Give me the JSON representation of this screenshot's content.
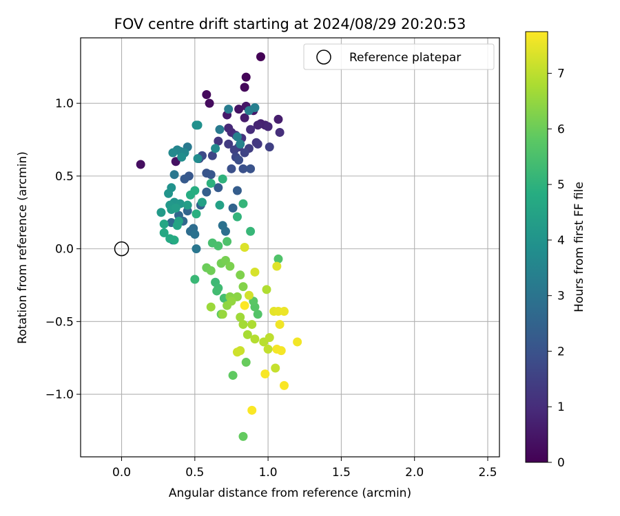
{
  "colors": {
    "grid": "#b0b0b0",
    "reference_marker": "#000000",
    "colormap": "viridis"
  },
  "chart_data": {
    "type": "scatter",
    "title": "FOV centre drift starting at 2024/08/29 20:20:53",
    "xlabel": "Angular distance from reference (arcmin)",
    "ylabel": "Rotation from reference (arcmin)",
    "xlim": [
      -0.28,
      2.58
    ],
    "ylim": [
      -1.43,
      1.45
    ],
    "x_ticks": [
      0.0,
      0.5,
      1.0,
      1.5,
      2.0,
      2.5
    ],
    "x_tick_labels": [
      "0.0",
      "0.5",
      "1.0",
      "1.5",
      "2.0",
      "2.5"
    ],
    "y_ticks": [
      1.0,
      0.5,
      0.0,
      -0.5,
      -1.0
    ],
    "y_tick_labels": [
      "1.0",
      "0.5",
      "0.0",
      "−0.5",
      "−1.0"
    ],
    "grid": true,
    "legend": {
      "position": "top-right",
      "entries": [
        "Reference platepar"
      ]
    },
    "reference_point": {
      "x": 0.0,
      "y": 0.0
    },
    "colorbar": {
      "label": "Hours from first FF file",
      "min": 0,
      "max": 7.75,
      "ticks": [
        0,
        1,
        2,
        3,
        4,
        5,
        6,
        7
      ],
      "tick_labels": [
        "0",
        "1",
        "2",
        "3",
        "4",
        "5",
        "6",
        "7"
      ]
    },
    "series": [
      {
        "values": [
          {
            "x": 0.95,
            "y": 1.32,
            "h": 0.05
          },
          {
            "x": 0.85,
            "y": 1.18,
            "h": 0.1
          },
          {
            "x": 0.84,
            "y": 1.11,
            "h": 0.15
          },
          {
            "x": 0.58,
            "y": 1.06,
            "h": 0.2
          },
          {
            "x": 0.6,
            "y": 1.0,
            "h": 0.25
          },
          {
            "x": 0.13,
            "y": 0.58,
            "h": 0.3
          },
          {
            "x": 0.37,
            "y": 0.6,
            "h": 0.35
          },
          {
            "x": 0.8,
            "y": 0.96,
            "h": 0.4
          },
          {
            "x": 0.85,
            "y": 0.98,
            "h": 0.45
          },
          {
            "x": 0.9,
            "y": 0.95,
            "h": 0.5
          },
          {
            "x": 0.72,
            "y": 0.92,
            "h": 0.55
          },
          {
            "x": 0.84,
            "y": 0.9,
            "h": 0.6
          },
          {
            "x": 1.07,
            "y": 0.89,
            "h": 0.65
          },
          {
            "x": 0.95,
            "y": 0.86,
            "h": 0.7
          },
          {
            "x": 0.98,
            "y": 0.85,
            "h": 0.75
          },
          {
            "x": 0.93,
            "y": 0.85,
            "h": 0.8
          },
          {
            "x": 1.0,
            "y": 0.84,
            "h": 0.85
          },
          {
            "x": 0.73,
            "y": 0.83,
            "h": 0.9
          },
          {
            "x": 0.75,
            "y": 0.8,
            "h": 0.95
          },
          {
            "x": 0.88,
            "y": 0.82,
            "h": 1.0
          },
          {
            "x": 1.08,
            "y": 0.8,
            "h": 1.05
          },
          {
            "x": 0.78,
            "y": 0.78,
            "h": 1.1
          },
          {
            "x": 0.82,
            "y": 0.76,
            "h": 1.15
          },
          {
            "x": 0.66,
            "y": 0.74,
            "h": 1.2
          },
          {
            "x": 0.92,
            "y": 0.73,
            "h": 1.25
          },
          {
            "x": 0.93,
            "y": 0.72,
            "h": 1.3
          },
          {
            "x": 0.73,
            "y": 0.72,
            "h": 1.35
          },
          {
            "x": 0.8,
            "y": 0.7,
            "h": 1.4
          },
          {
            "x": 0.87,
            "y": 0.69,
            "h": 1.45
          },
          {
            "x": 1.01,
            "y": 0.7,
            "h": 1.5
          },
          {
            "x": 0.77,
            "y": 0.68,
            "h": 1.55
          },
          {
            "x": 0.84,
            "y": 0.66,
            "h": 1.6
          },
          {
            "x": 0.62,
            "y": 0.64,
            "h": 1.65
          },
          {
            "x": 0.78,
            "y": 0.63,
            "h": 1.7
          },
          {
            "x": 0.55,
            "y": 0.64,
            "h": 1.75
          },
          {
            "x": 0.53,
            "y": 0.62,
            "h": 1.8
          },
          {
            "x": 0.8,
            "y": 0.61,
            "h": 1.85
          },
          {
            "x": 0.75,
            "y": 0.55,
            "h": 1.9
          },
          {
            "x": 0.83,
            "y": 0.55,
            "h": 1.95
          },
          {
            "x": 0.88,
            "y": 0.55,
            "h": 2.0
          },
          {
            "x": 0.58,
            "y": 0.52,
            "h": 2.05
          },
          {
            "x": 0.61,
            "y": 0.51,
            "h": 2.1
          },
          {
            "x": 0.46,
            "y": 0.5,
            "h": 2.15
          },
          {
            "x": 0.43,
            "y": 0.48,
            "h": 2.2
          },
          {
            "x": 0.66,
            "y": 0.42,
            "h": 2.25
          },
          {
            "x": 0.79,
            "y": 0.4,
            "h": 2.3
          },
          {
            "x": 0.58,
            "y": 0.39,
            "h": 2.35
          },
          {
            "x": 0.37,
            "y": 0.3,
            "h": 2.4
          },
          {
            "x": 0.54,
            "y": 0.3,
            "h": 2.45
          },
          {
            "x": 0.76,
            "y": 0.28,
            "h": 2.5
          },
          {
            "x": 0.45,
            "y": 0.26,
            "h": 2.55
          },
          {
            "x": 0.39,
            "y": 0.23,
            "h": 2.6
          },
          {
            "x": 0.42,
            "y": 0.19,
            "h": 2.65
          },
          {
            "x": 0.34,
            "y": 0.18,
            "h": 2.7
          },
          {
            "x": 0.49,
            "y": 0.14,
            "h": 2.75
          },
          {
            "x": 0.47,
            "y": 0.12,
            "h": 2.8
          },
          {
            "x": 0.71,
            "y": 0.12,
            "h": 2.85
          },
          {
            "x": 0.69,
            "y": 0.16,
            "h": 2.9
          },
          {
            "x": 0.5,
            "y": 0.1,
            "h": 2.95
          },
          {
            "x": 0.35,
            "y": 0.06,
            "h": 3.0
          },
          {
            "x": 0.51,
            "y": 0.0,
            "h": 3.05
          },
          {
            "x": 0.36,
            "y": 0.51,
            "h": 3.1
          },
          {
            "x": 0.45,
            "y": 0.7,
            "h": 3.15
          },
          {
            "x": 0.67,
            "y": 0.82,
            "h": 3.2
          },
          {
            "x": 0.73,
            "y": 0.96,
            "h": 3.25
          },
          {
            "x": 0.87,
            "y": 0.95,
            "h": 3.3
          },
          {
            "x": 0.91,
            "y": 0.97,
            "h": 3.35
          },
          {
            "x": 0.79,
            "y": 0.77,
            "h": 3.4
          },
          {
            "x": 0.81,
            "y": 0.72,
            "h": 3.45
          },
          {
            "x": 0.38,
            "y": 0.68,
            "h": 3.5
          },
          {
            "x": 0.4,
            "y": 0.67,
            "h": 3.55
          },
          {
            "x": 0.43,
            "y": 0.66,
            "h": 3.6
          },
          {
            "x": 0.35,
            "y": 0.66,
            "h": 3.65
          },
          {
            "x": 0.64,
            "y": 0.69,
            "h": 3.7
          },
          {
            "x": 0.52,
            "y": 0.62,
            "h": 3.75
          },
          {
            "x": 0.41,
            "y": 0.63,
            "h": 3.8
          },
          {
            "x": 0.51,
            "y": 0.85,
            "h": 3.85
          },
          {
            "x": 0.52,
            "y": 0.85,
            "h": 3.9
          },
          {
            "x": 0.34,
            "y": 0.42,
            "h": 3.95
          },
          {
            "x": 0.32,
            "y": 0.38,
            "h": 4.0
          },
          {
            "x": 0.36,
            "y": 0.32,
            "h": 4.05
          },
          {
            "x": 0.4,
            "y": 0.31,
            "h": 4.1
          },
          {
            "x": 0.33,
            "y": 0.3,
            "h": 4.15
          },
          {
            "x": 0.27,
            "y": 0.25,
            "h": 4.2
          },
          {
            "x": 0.34,
            "y": 0.27,
            "h": 4.25
          },
          {
            "x": 0.37,
            "y": 0.28,
            "h": 4.3
          },
          {
            "x": 0.45,
            "y": 0.3,
            "h": 4.35
          },
          {
            "x": 0.55,
            "y": 0.32,
            "h": 4.4
          },
          {
            "x": 0.67,
            "y": 0.3,
            "h": 4.45
          },
          {
            "x": 0.39,
            "y": 0.19,
            "h": 4.5
          },
          {
            "x": 0.38,
            "y": 0.16,
            "h": 4.55
          },
          {
            "x": 0.29,
            "y": 0.17,
            "h": 4.6
          },
          {
            "x": 0.29,
            "y": 0.11,
            "h": 4.65
          },
          {
            "x": 0.33,
            "y": 0.07,
            "h": 4.7
          },
          {
            "x": 0.36,
            "y": 0.06,
            "h": 4.75
          },
          {
            "x": 0.47,
            "y": 0.37,
            "h": 4.8
          },
          {
            "x": 0.5,
            "y": 0.4,
            "h": 4.85
          },
          {
            "x": 0.51,
            "y": 0.24,
            "h": 4.9
          },
          {
            "x": 0.61,
            "y": 0.45,
            "h": 4.95
          },
          {
            "x": 0.69,
            "y": 0.48,
            "h": 5.0
          },
          {
            "x": 0.79,
            "y": 0.22,
            "h": 5.05
          },
          {
            "x": 0.83,
            "y": 0.31,
            "h": 5.1
          },
          {
            "x": 0.88,
            "y": 0.12,
            "h": 5.15
          },
          {
            "x": 0.5,
            "y": -0.21,
            "h": 5.2
          },
          {
            "x": 0.64,
            "y": -0.23,
            "h": 5.25
          },
          {
            "x": 0.66,
            "y": -0.27,
            "h": 5.3
          },
          {
            "x": 0.65,
            "y": -0.29,
            "h": 5.35
          },
          {
            "x": 0.7,
            "y": -0.34,
            "h": 5.4
          },
          {
            "x": 0.62,
            "y": 0.04,
            "h": 5.45
          },
          {
            "x": 0.66,
            "y": 0.02,
            "h": 5.5
          },
          {
            "x": 0.72,
            "y": 0.05,
            "h": 5.55
          },
          {
            "x": 1.07,
            "y": -0.07,
            "h": 5.6
          },
          {
            "x": 0.93,
            "y": -0.45,
            "h": 5.65
          },
          {
            "x": 0.91,
            "y": -0.4,
            "h": 5.7
          },
          {
            "x": 0.9,
            "y": -0.36,
            "h": 5.75
          },
          {
            "x": 0.68,
            "y": -0.45,
            "h": 5.8
          },
          {
            "x": 0.76,
            "y": -0.87,
            "h": 5.85
          },
          {
            "x": 0.83,
            "y": -1.29,
            "h": 5.9
          },
          {
            "x": 0.85,
            "y": -0.78,
            "h": 5.95
          },
          {
            "x": 0.58,
            "y": -0.13,
            "h": 6.0
          },
          {
            "x": 0.61,
            "y": -0.15,
            "h": 6.05
          },
          {
            "x": 0.68,
            "y": -0.1,
            "h": 6.1
          },
          {
            "x": 0.71,
            "y": -0.08,
            "h": 6.15
          },
          {
            "x": 0.74,
            "y": -0.12,
            "h": 6.2
          },
          {
            "x": 0.81,
            "y": -0.18,
            "h": 6.25
          },
          {
            "x": 0.83,
            "y": -0.26,
            "h": 6.3
          },
          {
            "x": 0.74,
            "y": -0.33,
            "h": 6.35
          },
          {
            "x": 0.79,
            "y": -0.33,
            "h": 6.4
          },
          {
            "x": 0.72,
            "y": -0.39,
            "h": 6.45
          },
          {
            "x": 0.75,
            "y": -0.36,
            "h": 6.5
          },
          {
            "x": 0.69,
            "y": -0.45,
            "h": 6.55
          },
          {
            "x": 0.61,
            "y": -0.4,
            "h": 6.6
          },
          {
            "x": 0.81,
            "y": -0.47,
            "h": 6.65
          },
          {
            "x": 0.83,
            "y": -0.52,
            "h": 6.7
          },
          {
            "x": 0.86,
            "y": -0.59,
            "h": 6.75
          },
          {
            "x": 0.89,
            "y": -0.52,
            "h": 6.8
          },
          {
            "x": 0.99,
            "y": -0.28,
            "h": 6.85
          },
          {
            "x": 0.91,
            "y": -0.62,
            "h": 6.9
          },
          {
            "x": 0.97,
            "y": -0.64,
            "h": 6.95
          },
          {
            "x": 1.01,
            "y": -0.61,
            "h": 7.0
          },
          {
            "x": 1.0,
            "y": -0.69,
            "h": 7.05
          },
          {
            "x": 1.05,
            "y": -0.82,
            "h": 7.1
          },
          {
            "x": 0.81,
            "y": -0.7,
            "h": 7.15
          },
          {
            "x": 0.79,
            "y": -0.71,
            "h": 7.2
          },
          {
            "x": 0.87,
            "y": -0.32,
            "h": 7.25
          },
          {
            "x": 0.91,
            "y": -0.16,
            "h": 7.3
          },
          {
            "x": 0.84,
            "y": 0.01,
            "h": 7.35
          },
          {
            "x": 1.06,
            "y": -0.12,
            "h": 7.4
          },
          {
            "x": 1.04,
            "y": -0.43,
            "h": 7.45
          },
          {
            "x": 1.07,
            "y": -0.43,
            "h": 7.5
          },
          {
            "x": 1.11,
            "y": -0.43,
            "h": 7.55
          },
          {
            "x": 1.08,
            "y": -0.52,
            "h": 7.6
          },
          {
            "x": 1.2,
            "y": -0.64,
            "h": 7.62
          },
          {
            "x": 1.06,
            "y": -0.69,
            "h": 7.64
          },
          {
            "x": 1.09,
            "y": -0.7,
            "h": 7.66
          },
          {
            "x": 0.98,
            "y": -0.86,
            "h": 7.68
          },
          {
            "x": 1.11,
            "y": -0.94,
            "h": 7.7
          },
          {
            "x": 0.89,
            "y": -1.11,
            "h": 7.72
          },
          {
            "x": 0.84,
            "y": -0.39,
            "h": 7.74
          }
        ]
      }
    ]
  }
}
